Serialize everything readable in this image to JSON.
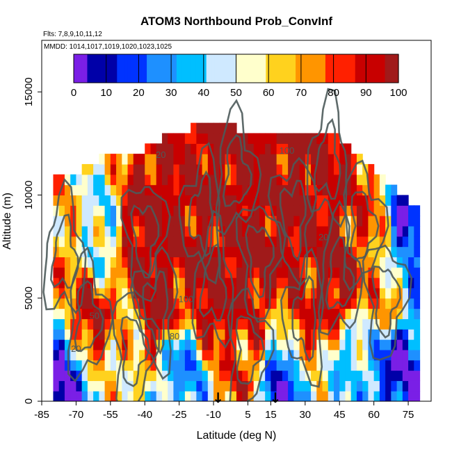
{
  "chart_data": {
    "type": "heatmap",
    "title": "ATOM3 Northbound Prob_ConvInf",
    "annotations": [
      "Flts: 7,8,9,10,11,12",
      "MMDD: 1014,1017,1019,1020,1023,1025"
    ],
    "xlabel": "Latitude (deg N)",
    "ylabel": "Altitude (m)",
    "xlim": [
      -85,
      85
    ],
    "ylim": [
      0,
      17500
    ],
    "x_ticks": [
      -85,
      -70,
      -55,
      -40,
      -25,
      -10,
      5,
      15,
      30,
      45,
      60,
      75
    ],
    "y_ticks": [
      0,
      5000,
      10000,
      15000
    ],
    "colorbar": {
      "ticks": [
        0,
        10,
        20,
        30,
        40,
        50,
        60,
        70,
        80,
        90,
        100
      ],
      "colors": [
        "#7a1fe6",
        "#0000a8",
        "#0033ff",
        "#1e90ff",
        "#00bfff",
        "#cfe9ff",
        "#ffffcc",
        "#ffd21e",
        "#ff9500",
        "#ff2000",
        "#c80000",
        "#a01a1a"
      ]
    },
    "data_extent": {
      "lat_range": [
        -80,
        80
      ],
      "alt_range": [
        0,
        13500
      ],
      "lat_step": 2.5,
      "alt_step": 500
    },
    "envelope_top": [
      {
        "lat": -80,
        "alt": 10500
      },
      {
        "lat": -70,
        "alt": 10800
      },
      {
        "lat": -60,
        "alt": 11500
      },
      {
        "lat": -50,
        "alt": 12000
      },
      {
        "lat": -40,
        "alt": 12000
      },
      {
        "lat": -30,
        "alt": 12700
      },
      {
        "lat": -20,
        "alt": 13000
      },
      {
        "lat": -10,
        "alt": 13500
      },
      {
        "lat": 0,
        "alt": 13000
      },
      {
        "lat": 10,
        "alt": 13000
      },
      {
        "lat": 20,
        "alt": 13000
      },
      {
        "lat": 30,
        "alt": 13000
      },
      {
        "lat": 40,
        "alt": 13000
      },
      {
        "lat": 50,
        "alt": 12000
      },
      {
        "lat": 60,
        "alt": 11000
      },
      {
        "lat": 70,
        "alt": 10000
      },
      {
        "lat": 80,
        "alt": 9000
      }
    ],
    "probability_anchors": [
      {
        "lat": -75,
        "alt": 1000,
        "value": 5
      },
      {
        "lat": -75,
        "alt": 7000,
        "value": 70
      },
      {
        "lat": -65,
        "alt": 4000,
        "value": 90
      },
      {
        "lat": -60,
        "alt": 8000,
        "value": 45
      },
      {
        "lat": -45,
        "alt": 2500,
        "value": 60
      },
      {
        "lat": -40,
        "alt": 8000,
        "value": 100
      },
      {
        "lat": -35,
        "alt": 4500,
        "value": 100
      },
      {
        "lat": -25,
        "alt": 1500,
        "value": 30
      },
      {
        "lat": -15,
        "alt": 9000,
        "value": 95
      },
      {
        "lat": -10,
        "alt": 5500,
        "value": 100
      },
      {
        "lat": 0,
        "alt": 11000,
        "value": 100
      },
      {
        "lat": 5,
        "alt": 2500,
        "value": 80
      },
      {
        "lat": 10,
        "alt": 7000,
        "value": 100
      },
      {
        "lat": 20,
        "alt": 1000,
        "value": 15
      },
      {
        "lat": 25,
        "alt": 9000,
        "value": 100
      },
      {
        "lat": 30,
        "alt": 4000,
        "value": 85
      },
      {
        "lat": 40,
        "alt": 11500,
        "value": 95
      },
      {
        "lat": 45,
        "alt": 6000,
        "value": 100
      },
      {
        "lat": 50,
        "alt": 2000,
        "value": 40
      },
      {
        "lat": 55,
        "alt": 8500,
        "value": 80
      },
      {
        "lat": 65,
        "alt": 5000,
        "value": 70
      },
      {
        "lat": 70,
        "alt": 2000,
        "value": 10
      },
      {
        "lat": 75,
        "alt": 8000,
        "value": 15
      }
    ],
    "contour_levels": [
      20,
      50,
      80,
      100
    ],
    "contour_labels": [
      {
        "text": "20",
        "lat": -33,
        "alt": 11800
      },
      {
        "text": "100",
        "lat": 22,
        "alt": 12000
      },
      {
        "text": "20",
        "lat": -70,
        "alt": 2400
      },
      {
        "text": "80",
        "lat": -27,
        "alt": 3000
      },
      {
        "text": "100",
        "lat": -22,
        "alt": 4800
      },
      {
        "text": "20",
        "lat": 38,
        "alt": 7800
      },
      {
        "text": "50",
        "lat": -62,
        "alt": 4000
      }
    ],
    "flight_markers": [
      {
        "lat": -8,
        "label": "↓"
      },
      {
        "lat": 17,
        "label": "↓"
      }
    ]
  }
}
